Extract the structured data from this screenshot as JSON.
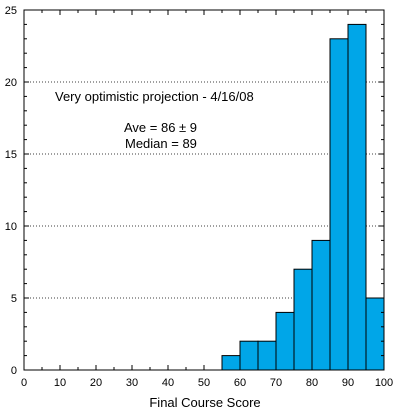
{
  "chart_data": {
    "type": "bar",
    "title": "",
    "xlabel": "Final Course Score",
    "ylabel": "",
    "xlim": [
      0,
      100
    ],
    "ylim": [
      0,
      25
    ],
    "bin_width": 5,
    "bins": [
      {
        "start": 55,
        "end": 60,
        "value": 1
      },
      {
        "start": 60,
        "end": 65,
        "value": 2
      },
      {
        "start": 65,
        "end": 70,
        "value": 2
      },
      {
        "start": 70,
        "end": 75,
        "value": 4
      },
      {
        "start": 75,
        "end": 80,
        "value": 7
      },
      {
        "start": 80,
        "end": 85,
        "value": 9
      },
      {
        "start": 85,
        "end": 90,
        "value": 23
      },
      {
        "start": 90,
        "end": 95,
        "value": 24
      },
      {
        "start": 95,
        "end": 100,
        "value": 5
      }
    ],
    "xticks": [
      "0",
      "10",
      "20",
      "30",
      "40",
      "50",
      "60",
      "70",
      "80",
      "90",
      "100"
    ],
    "yticks": [
      "0",
      "5",
      "10",
      "15",
      "20",
      "25"
    ],
    "grid": "horizontal dotted",
    "bar_color": "#00a6e8",
    "annotations": {
      "line1": "Very optimistic projection - 4/16/08",
      "line2": "Ave = 86 ± 9",
      "line3": "Median = 89"
    }
  }
}
